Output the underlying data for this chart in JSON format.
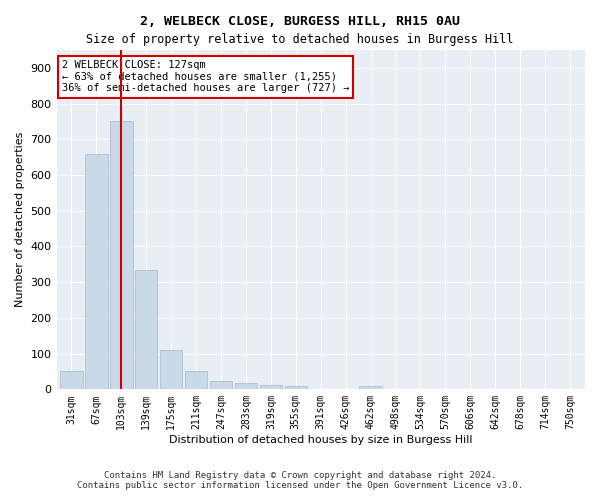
{
  "title1": "2, WELBECK CLOSE, BURGESS HILL, RH15 0AU",
  "title2": "Size of property relative to detached houses in Burgess Hill",
  "xlabel": "Distribution of detached houses by size in Burgess Hill",
  "ylabel": "Number of detached properties",
  "footer1": "Contains HM Land Registry data © Crown copyright and database right 2024.",
  "footer2": "Contains public sector information licensed under the Open Government Licence v3.0.",
  "bar_labels": [
    "31sqm",
    "67sqm",
    "103sqm",
    "139sqm",
    "175sqm",
    "211sqm",
    "247sqm",
    "283sqm",
    "319sqm",
    "355sqm",
    "391sqm",
    "426sqm",
    "462sqm",
    "498sqm",
    "534sqm",
    "570sqm",
    "606sqm",
    "642sqm",
    "678sqm",
    "714sqm",
    "750sqm"
  ],
  "bar_values": [
    50,
    660,
    750,
    335,
    110,
    50,
    22,
    18,
    12,
    8,
    0,
    0,
    8,
    0,
    0,
    0,
    0,
    0,
    0,
    0,
    0
  ],
  "bar_color": "#c9d9e8",
  "bar_edge_color": "#a0b8cc",
  "bg_color": "#e8eef4",
  "grid_color": "#ffffff",
  "annotation_text": "2 WELBECK CLOSE: 127sqm\n← 63% of detached houses are smaller (1,255)\n36% of semi-detached houses are larger (727) →",
  "vline_x": 2.0,
  "vline_color": "#cc0000",
  "annotation_box_color": "#cc0000",
  "ylim": [
    0,
    950
  ],
  "yticks": [
    0,
    100,
    200,
    300,
    400,
    500,
    600,
    700,
    800,
    900
  ]
}
